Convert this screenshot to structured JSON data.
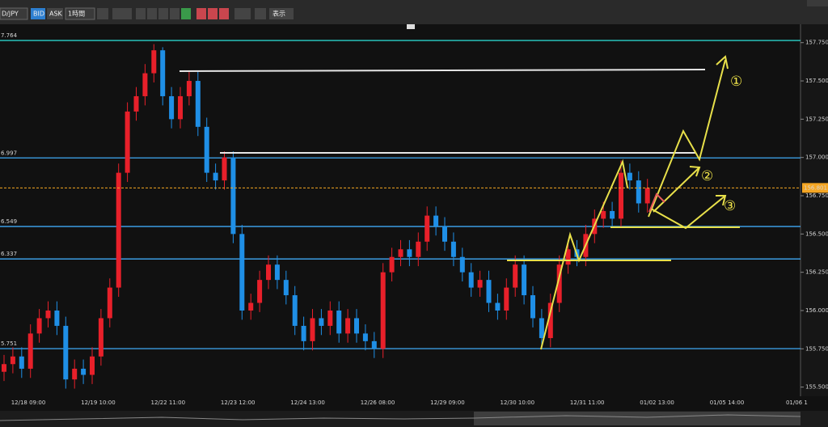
{
  "toolbar": {
    "symbol": "D/JPY",
    "bid": "BID",
    "ask": "ASK",
    "timeframe": "1時間",
    "view": "表示"
  },
  "chart_data": {
    "type": "candlestick",
    "open": [
      155.6,
      155.65,
      155.7,
      155.62,
      155.85,
      155.95,
      156.0,
      155.9,
      155.55,
      155.62,
      155.58,
      155.7,
      155.95,
      156.15,
      156.9,
      157.3,
      157.4,
      157.55,
      157.7,
      157.4,
      157.25,
      157.4,
      157.5,
      157.2,
      156.9,
      156.85,
      157.0,
      156.5,
      156.0,
      156.05,
      156.2,
      156.3,
      156.2,
      156.1,
      155.9,
      155.8,
      155.95,
      155.9,
      156.0,
      155.85,
      155.95,
      155.85,
      155.8,
      155.75,
      156.25,
      156.35,
      156.4,
      156.35,
      156.45,
      156.62,
      156.55,
      156.45,
      156.35,
      156.25,
      156.15,
      156.2,
      156.05,
      156.0,
      156.15,
      156.3,
      156.1,
      155.95,
      155.82,
      156.05,
      156.3,
      156.4,
      156.35,
      156.5,
      156.6,
      156.65,
      156.6,
      156.9,
      156.85,
      156.7
    ],
    "high": [
      155.71,
      155.76,
      155.76,
      155.91,
      156.01,
      156.06,
      156.06,
      155.96,
      155.68,
      155.68,
      155.76,
      156.01,
      156.21,
      156.96,
      157.36,
      157.46,
      157.61,
      157.74,
      157.72,
      157.46,
      157.46,
      157.56,
      157.56,
      157.26,
      156.96,
      157.04,
      157.04,
      156.56,
      156.11,
      156.26,
      156.36,
      156.36,
      156.26,
      156.16,
      155.96,
      156.01,
      156.01,
      156.06,
      156.06,
      156.01,
      156.01,
      155.91,
      155.86,
      156.31,
      156.41,
      156.46,
      156.46,
      156.51,
      156.68,
      156.68,
      156.61,
      156.51,
      156.41,
      156.31,
      156.26,
      156.26,
      156.11,
      156.21,
      156.36,
      156.36,
      156.16,
      156.01,
      156.11,
      156.36,
      156.46,
      156.46,
      156.56,
      156.66,
      156.71,
      156.71,
      156.98,
      156.96,
      156.91,
      156.86
    ],
    "low": [
      155.54,
      155.59,
      155.56,
      155.56,
      155.79,
      155.89,
      155.84,
      155.49,
      155.49,
      155.52,
      155.52,
      155.64,
      155.89,
      156.09,
      156.84,
      157.24,
      157.34,
      157.49,
      157.34,
      157.19,
      157.19,
      157.34,
      157.14,
      156.84,
      156.79,
      156.79,
      156.44,
      155.94,
      155.94,
      155.99,
      156.14,
      156.14,
      156.04,
      155.84,
      155.74,
      155.74,
      155.84,
      155.84,
      155.79,
      155.79,
      155.79,
      155.74,
      155.69,
      155.69,
      156.19,
      156.29,
      156.29,
      156.29,
      156.39,
      156.49,
      156.39,
      156.29,
      156.19,
      156.09,
      156.09,
      155.99,
      155.94,
      155.94,
      156.09,
      156.04,
      155.89,
      155.76,
      155.76,
      155.99,
      156.24,
      156.29,
      156.29,
      156.44,
      156.54,
      156.54,
      156.54,
      156.79,
      156.64,
      156.64
    ],
    "close": [
      155.65,
      155.7,
      155.62,
      155.85,
      155.95,
      156.0,
      155.9,
      155.55,
      155.62,
      155.58,
      155.7,
      155.95,
      156.15,
      156.9,
      157.3,
      157.4,
      157.55,
      157.7,
      157.4,
      157.25,
      157.4,
      157.5,
      157.2,
      156.9,
      156.85,
      157.0,
      156.5,
      156.0,
      156.05,
      156.2,
      156.3,
      156.2,
      156.1,
      155.9,
      155.8,
      155.95,
      155.9,
      156.0,
      155.85,
      155.95,
      155.85,
      155.8,
      155.75,
      156.25,
      156.35,
      156.4,
      156.35,
      156.45,
      156.62,
      156.55,
      156.45,
      156.35,
      156.25,
      156.15,
      156.2,
      156.05,
      156.0,
      156.15,
      156.3,
      156.1,
      155.95,
      155.82,
      156.05,
      156.3,
      156.4,
      156.35,
      156.5,
      156.6,
      156.65,
      156.6,
      156.9,
      156.85,
      156.7,
      156.8
    ],
    "up_color": "#e8202a",
    "down_color": "#1f8fe6",
    "ylim": [
      155.44,
      157.87
    ],
    "yticks": [
      {
        "value": 155.5,
        "label": "155.500"
      },
      {
        "value": 155.75,
        "label": "155.750"
      },
      {
        "value": 156.0,
        "label": "156.000"
      },
      {
        "value": 156.25,
        "label": "156.250"
      },
      {
        "value": 156.5,
        "label": "156.500"
      },
      {
        "value": 156.75,
        "label": "156.750"
      },
      {
        "value": 157.0,
        "label": "157.000"
      },
      {
        "value": 157.25,
        "label": "157.250"
      },
      {
        "value": 157.5,
        "label": "157.500"
      },
      {
        "value": 157.75,
        "label": "157.750"
      }
    ],
    "xtick_labels": [
      "12/18 09:00",
      "12/19 10:00",
      "12/22 11:00",
      "12/23 12:00",
      "12/24 13:00",
      "12/26 08:00",
      "12/29 09:00",
      "12/30 10:00",
      "12/31 11:00",
      "01/02 13:00",
      "01/05 14:00",
      "01/06 1"
    ],
    "levels": [
      {
        "value": 157.764,
        "label": "7.764",
        "color": "#2ad1c9"
      },
      {
        "value": 156.997,
        "label": "6.997",
        "color": "#3fa9f5"
      },
      {
        "value": 156.549,
        "label": "6.549",
        "color": "#3fa9f5"
      },
      {
        "value": 156.337,
        "label": "6.337",
        "color": "#3fa9f5"
      },
      {
        "value": 155.751,
        "label": "5.751",
        "color": "#3fa9f5"
      }
    ],
    "current_price": 156.801,
    "current_price_color": "#f5a623",
    "annotations": [
      "①",
      "②",
      "③"
    ]
  }
}
